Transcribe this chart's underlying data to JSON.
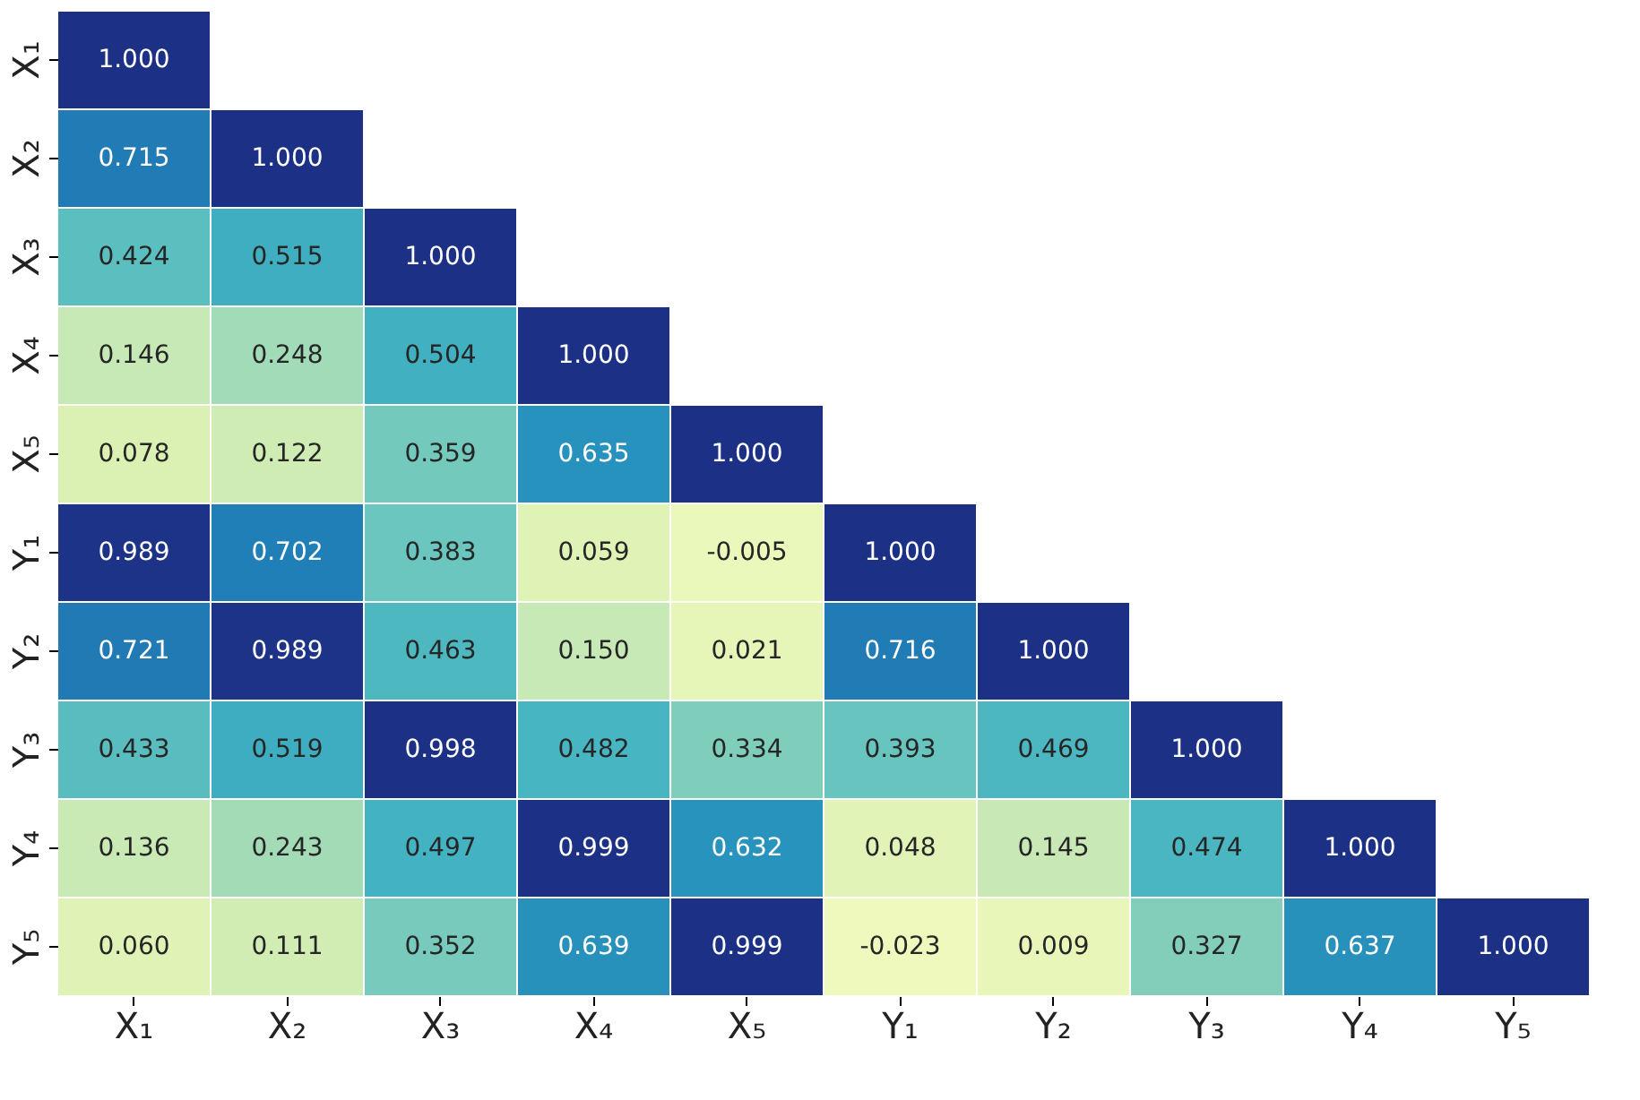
{
  "chart_data": {
    "type": "heatmap",
    "categories": [
      "X₁",
      "X₂",
      "X₃",
      "X₄",
      "X₅",
      "Y₁",
      "Y₂",
      "Y₃",
      "Y₄",
      "Y₅"
    ],
    "y_categories": [
      "X₁",
      "X₂",
      "X₃",
      "X₄",
      "X₅",
      "Y₁",
      "Y₂",
      "Y₃",
      "Y₄",
      "Y₅"
    ],
    "cells": [
      [
        1.0,
        null,
        null,
        null,
        null,
        null,
        null,
        null,
        null,
        null
      ],
      [
        0.715,
        1.0,
        null,
        null,
        null,
        null,
        null,
        null,
        null,
        null
      ],
      [
        0.424,
        0.515,
        1.0,
        null,
        null,
        null,
        null,
        null,
        null,
        null
      ],
      [
        0.146,
        0.248,
        0.504,
        1.0,
        null,
        null,
        null,
        null,
        null,
        null
      ],
      [
        0.078,
        0.122,
        0.359,
        0.635,
        1.0,
        null,
        null,
        null,
        null,
        null
      ],
      [
        0.989,
        0.702,
        0.383,
        0.059,
        -0.005,
        1.0,
        null,
        null,
        null,
        null
      ],
      [
        0.721,
        0.989,
        0.463,
        0.15,
        0.021,
        0.716,
        1.0,
        null,
        null,
        null
      ],
      [
        0.433,
        0.519,
        0.998,
        0.482,
        0.334,
        0.393,
        0.469,
        1.0,
        null,
        null
      ],
      [
        0.136,
        0.243,
        0.497,
        0.999,
        0.632,
        0.048,
        0.145,
        0.474,
        1.0,
        null
      ],
      [
        0.06,
        0.111,
        0.352,
        0.639,
        0.999,
        -0.023,
        0.009,
        0.327,
        0.637,
        1.0
      ]
    ],
    "cell_labels": [
      [
        "1.000",
        null,
        null,
        null,
        null,
        null,
        null,
        null,
        null,
        null
      ],
      [
        "0.715",
        "1.000",
        null,
        null,
        null,
        null,
        null,
        null,
        null,
        null
      ],
      [
        "0.424",
        "0.515",
        "1.000",
        null,
        null,
        null,
        null,
        null,
        null,
        null
      ],
      [
        "0.146",
        "0.248",
        "0.504",
        "1.000",
        null,
        null,
        null,
        null,
        null,
        null
      ],
      [
        "0.078",
        "0.122",
        "0.359",
        "0.635",
        "1.000",
        null,
        null,
        null,
        null,
        null
      ],
      [
        "0.989",
        "0.702",
        "0.383",
        "0.059",
        "-0.005",
        "1.000",
        null,
        null,
        null,
        null
      ],
      [
        "0.721",
        "0.989",
        "0.463",
        "0.150",
        "0.021",
        "0.716",
        "1.000",
        null,
        null,
        null
      ],
      [
        "0.433",
        "0.519",
        "0.998",
        "0.482",
        "0.334",
        "0.393",
        "0.469",
        "1.000",
        null,
        null
      ],
      [
        "0.136",
        "0.243",
        "0.497",
        "0.999",
        "0.632",
        "0.048",
        "0.145",
        "0.474",
        "1.000",
        null
      ],
      [
        "0.060",
        "0.111",
        "0.352",
        "0.639",
        "0.999",
        "-0.023",
        "0.009",
        "0.327",
        "0.637",
        "1.000"
      ]
    ]
  }
}
